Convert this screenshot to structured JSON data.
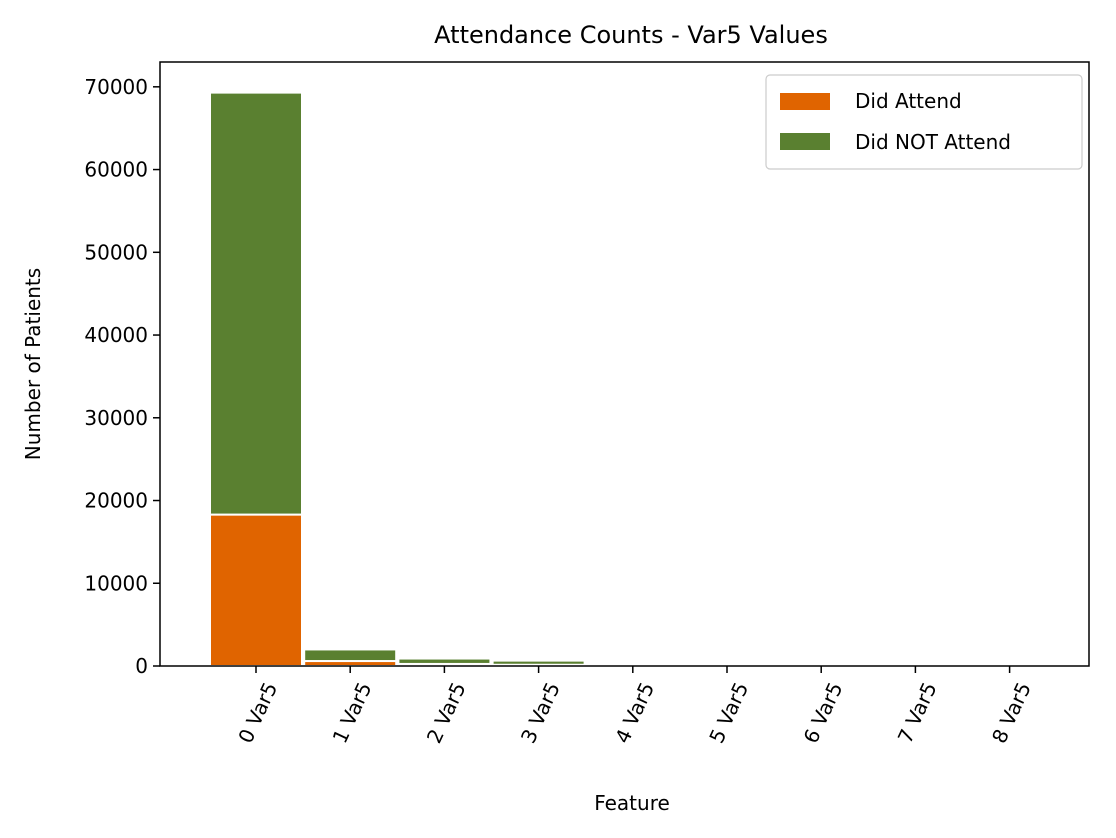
{
  "chart_data": {
    "type": "bar",
    "stacked": true,
    "title": "Attendance Counts - Var5 Values",
    "xlabel": "Feature",
    "ylabel": "Number of Patients",
    "categories": [
      "0 Var5",
      "1 Var5",
      "2 Var5",
      "3 Var5",
      "4 Var5",
      "5 Var5",
      "6 Var5",
      "7 Var5",
      "8 Var5"
    ],
    "series": [
      {
        "name": "Did Attend",
        "color": "#E06400",
        "values": [
          18300,
          600,
          250,
          150,
          60,
          20,
          5,
          2,
          1
        ]
      },
      {
        "name": "Did NOT Attend",
        "color": "#5A8030",
        "values": [
          51000,
          1400,
          650,
          500,
          200,
          80,
          30,
          10,
          5
        ]
      }
    ],
    "ylim": [
      0,
      73000
    ],
    "yticks": [
      0,
      10000,
      20000,
      30000,
      40000,
      50000,
      60000,
      70000
    ],
    "xtick_rotation": -65,
    "legend": "top-right",
    "grid": false
  }
}
